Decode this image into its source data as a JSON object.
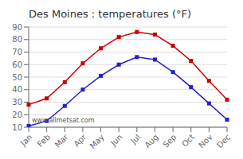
{
  "chart_data": {
    "type": "line",
    "title": "Des Moines : temperatures (°F)",
    "categories": [
      "Jan",
      "Feb",
      "Mar",
      "Apr",
      "May",
      "Jun",
      "Jul",
      "Aug",
      "Sep",
      "Oct",
      "Nov",
      "Dec"
    ],
    "series": [
      {
        "color": "#cc0000",
        "marker": "square",
        "line_style": "solid",
        "values": [
          28,
          33,
          46,
          61,
          73,
          82,
          86,
          84,
          75,
          63,
          47,
          32
        ]
      },
      {
        "color": "#2222cc",
        "marker": "square",
        "line_style": "solid",
        "values": [
          11,
          15,
          27,
          40,
          51,
          60,
          66,
          64,
          54,
          42,
          29,
          16
        ]
      }
    ],
    "ylim": [
      10,
      90
    ],
    "yticks": [
      10,
      20,
      30,
      40,
      50,
      60,
      70,
      80,
      90
    ],
    "grid": true,
    "annotation": "www.allmetsat.com"
  }
}
